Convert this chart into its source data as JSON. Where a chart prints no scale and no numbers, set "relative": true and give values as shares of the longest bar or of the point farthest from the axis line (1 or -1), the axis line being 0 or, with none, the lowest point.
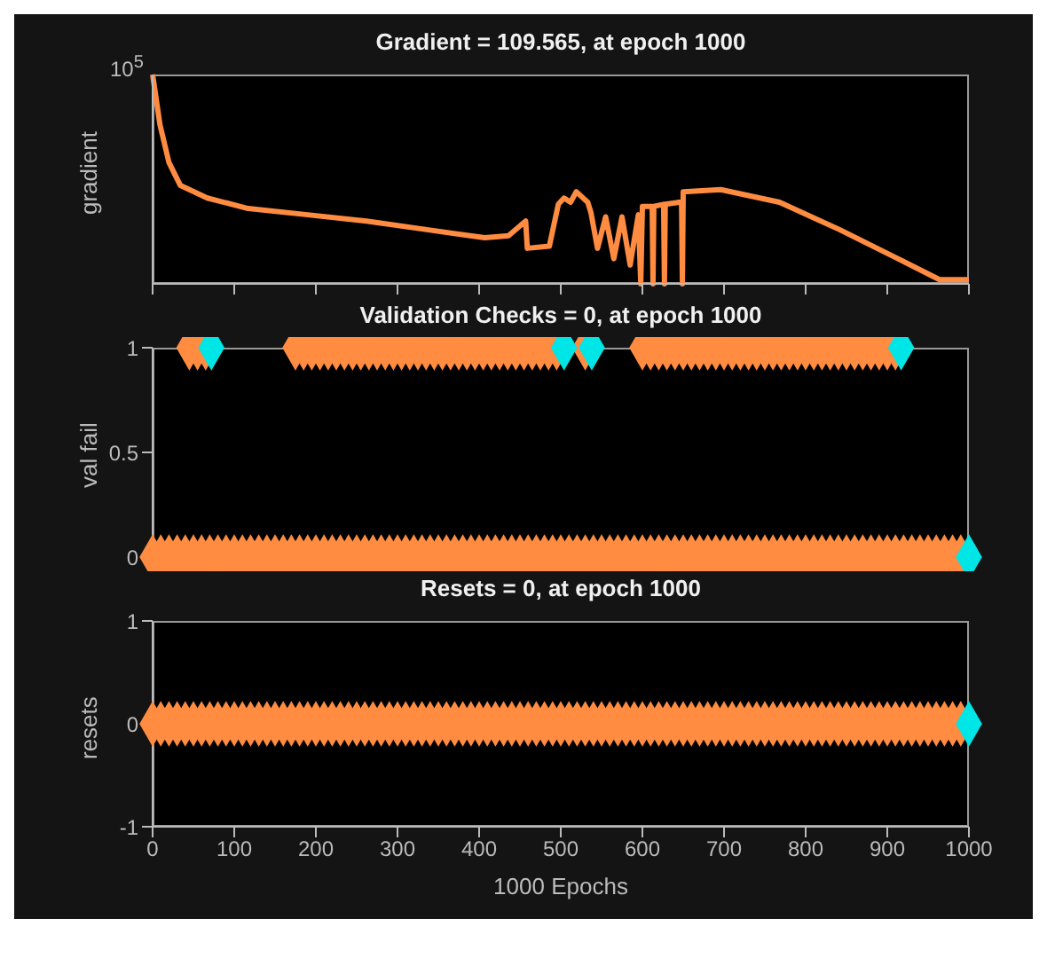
{
  "chart_data": [
    {
      "type": "line",
      "title": "Gradient = 109.565, at epoch 1000",
      "ylabel": "gradient",
      "relative": true,
      "annotations": [
        "10$^{5}$"
      ],
      "xlim": [
        0,
        1000
      ],
      "xticks": [
        0,
        100,
        200,
        300,
        400,
        500,
        600,
        700,
        800,
        900,
        1000
      ],
      "tick_labels": false,
      "marker": "none",
      "series": [
        {
          "color": "#ff8c40",
          "x": [
            0,
            9,
            20,
            34,
            67,
            117,
            190,
            262,
            334,
            407,
            436,
            457,
            459,
            486,
            497,
            504,
            512,
            519,
            533,
            537,
            545,
            555,
            565,
            575,
            585,
            595,
            598,
            600,
            605,
            612,
            613,
            614,
            626,
            627,
            628,
            645,
            648,
            649,
            650,
            696,
            768,
            841,
            913,
            964,
            971,
            1000
          ],
          "values": [
            1,
            0.76,
            0.58,
            0.47,
            0.41,
            0.36,
            0.33,
            0.3,
            0.26,
            0.22,
            0.23,
            0.3,
            0.17,
            0.18,
            0.38,
            0.41,
            0.39,
            0.44,
            0.39,
            0.34,
            0.17,
            0.32,
            0.12,
            0.32,
            0.09,
            0.33,
            0,
            0.37,
            0.37,
            0.37,
            0,
            0.37,
            0.38,
            0,
            0.38,
            0.39,
            0.39,
            0,
            0.44,
            0.45,
            0.39,
            0.26,
            0.12,
            0.02,
            0.02,
            0.02
          ]
        }
      ]
    },
    {
      "type": "scatter",
      "title": "Validation Checks = 0, at epoch 1000",
      "ylabel": "val fail",
      "xlim": [
        0,
        1000
      ],
      "xticks": [
        0,
        100,
        200,
        300,
        400,
        500,
        600,
        700,
        800,
        900,
        1000
      ],
      "ylim": [
        0,
        1
      ],
      "yticks": [
        0,
        0.5,
        1
      ],
      "tick_labels": "y",
      "marker": "diamond",
      "series": [
        {
          "color": "#ff8c40",
          "x": [
            0,
            10,
            20,
            30,
            40,
            50,
            60,
            70,
            80,
            90,
            100,
            110,
            120,
            130,
            140,
            150,
            160,
            170,
            180,
            190,
            200,
            210,
            220,
            230,
            240,
            250,
            260,
            270,
            280,
            290,
            300,
            310,
            320,
            330,
            340,
            350,
            360,
            370,
            380,
            390,
            400,
            410,
            420,
            430,
            440,
            450,
            460,
            470,
            480,
            490,
            500,
            510,
            520,
            530,
            540,
            550,
            560,
            570,
            580,
            590,
            600,
            610,
            620,
            630,
            640,
            650,
            660,
            670,
            680,
            690,
            700,
            710,
            720,
            730,
            740,
            750,
            760,
            770,
            780,
            790,
            800,
            810,
            820,
            830,
            840,
            850,
            860,
            870,
            880,
            890,
            900,
            910,
            920,
            930,
            940,
            950,
            960,
            970,
            980,
            990
          ],
          "values": [
            0,
            0,
            0,
            0,
            0,
            0,
            0,
            0,
            0,
            0,
            0,
            0,
            0,
            0,
            0,
            0,
            0,
            0,
            0,
            0,
            0,
            0,
            0,
            0,
            0,
            0,
            0,
            0,
            0,
            0,
            0,
            0,
            0,
            0,
            0,
            0,
            0,
            0,
            0,
            0,
            0,
            0,
            0,
            0,
            0,
            0,
            0,
            0,
            0,
            0,
            0,
            0,
            0,
            0,
            0,
            0,
            0,
            0,
            0,
            0,
            0,
            0,
            0,
            0,
            0,
            0,
            0,
            0,
            0,
            0,
            0,
            0,
            0,
            0,
            0,
            0,
            0,
            0,
            0,
            0,
            0,
            0,
            0,
            0,
            0,
            0,
            0,
            0,
            0,
            0,
            0,
            0,
            0,
            0,
            0,
            0,
            0,
            0,
            0,
            0
          ]
        },
        {
          "color": "#ff8c40",
          "x": [
            45,
            55,
            65,
            175,
            185,
            195,
            205,
            215,
            225,
            235,
            245,
            255,
            265,
            275,
            285,
            295,
            305,
            315,
            325,
            335,
            345,
            355,
            365,
            375,
            385,
            395,
            405,
            415,
            425,
            435,
            445,
            455,
            465,
            475,
            485,
            495,
            530,
            600,
            610,
            620,
            630,
            640,
            650,
            660,
            670,
            680,
            690,
            700,
            710,
            720,
            730,
            740,
            750,
            760,
            770,
            780,
            790,
            800,
            810,
            820,
            830,
            840,
            850,
            860,
            870,
            880,
            890,
            900,
            910
          ],
          "values": [
            1,
            1,
            1,
            1,
            1,
            1,
            1,
            1,
            1,
            1,
            1,
            1,
            1,
            1,
            1,
            1,
            1,
            1,
            1,
            1,
            1,
            1,
            1,
            1,
            1,
            1,
            1,
            1,
            1,
            1,
            1,
            1,
            1,
            1,
            1,
            1,
            1,
            1,
            1,
            1,
            1,
            1,
            1,
            1,
            1,
            1,
            1,
            1,
            1,
            1,
            1,
            1,
            1,
            1,
            1,
            1,
            1,
            1,
            1,
            1,
            1,
            1,
            1,
            1,
            1,
            1,
            1,
            1,
            1
          ]
        },
        {
          "color": "#00e5e5",
          "x": [
            72,
            504,
            538,
            917,
            1000
          ],
          "values": [
            1,
            1,
            1,
            1,
            0
          ]
        }
      ]
    },
    {
      "type": "scatter",
      "title": "Resets = 0, at epoch 1000",
      "xlabel": "1000 Epochs",
      "ylabel": "resets",
      "xlim": [
        0,
        1000
      ],
      "xticks": [
        0,
        100,
        200,
        300,
        400,
        500,
        600,
        700,
        800,
        900,
        1000
      ],
      "ylim": [
        -1,
        1
      ],
      "yticks": [
        -1,
        0,
        1
      ],
      "marker": "diamond",
      "series": [
        {
          "color": "#ff8c40",
          "x": [
            0,
            10,
            20,
            30,
            40,
            50,
            60,
            70,
            80,
            90,
            100,
            110,
            120,
            130,
            140,
            150,
            160,
            170,
            180,
            190,
            200,
            210,
            220,
            230,
            240,
            250,
            260,
            270,
            280,
            290,
            300,
            310,
            320,
            330,
            340,
            350,
            360,
            370,
            380,
            390,
            400,
            410,
            420,
            430,
            440,
            450,
            460,
            470,
            480,
            490,
            500,
            510,
            520,
            530,
            540,
            550,
            560,
            570,
            580,
            590,
            600,
            610,
            620,
            630,
            640,
            650,
            660,
            670,
            680,
            690,
            700,
            710,
            720,
            730,
            740,
            750,
            760,
            770,
            780,
            790,
            800,
            810,
            820,
            830,
            840,
            850,
            860,
            870,
            880,
            890,
            900,
            910,
            920,
            930,
            940,
            950,
            960,
            970,
            980,
            990
          ],
          "values": [
            0,
            0,
            0,
            0,
            0,
            0,
            0,
            0,
            0,
            0,
            0,
            0,
            0,
            0,
            0,
            0,
            0,
            0,
            0,
            0,
            0,
            0,
            0,
            0,
            0,
            0,
            0,
            0,
            0,
            0,
            0,
            0,
            0,
            0,
            0,
            0,
            0,
            0,
            0,
            0,
            0,
            0,
            0,
            0,
            0,
            0,
            0,
            0,
            0,
            0,
            0,
            0,
            0,
            0,
            0,
            0,
            0,
            0,
            0,
            0,
            0,
            0,
            0,
            0,
            0,
            0,
            0,
            0,
            0,
            0,
            0,
            0,
            0,
            0,
            0,
            0,
            0,
            0,
            0,
            0,
            0,
            0,
            0,
            0,
            0,
            0,
            0,
            0,
            0,
            0,
            0,
            0,
            0,
            0,
            0,
            0,
            0,
            0,
            0,
            0
          ]
        },
        {
          "color": "#00e5e5",
          "x": [
            1000
          ],
          "values": [
            0
          ]
        }
      ]
    }
  ]
}
